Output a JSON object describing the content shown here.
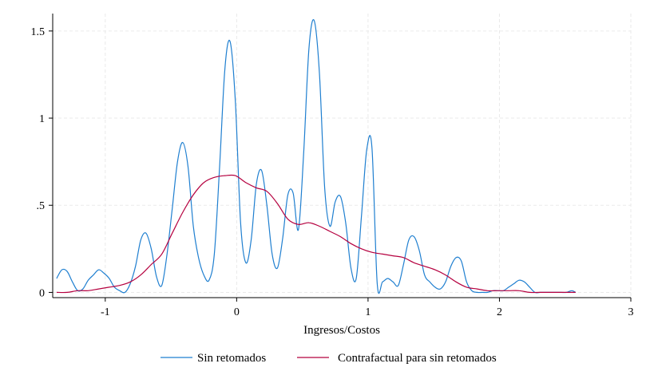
{
  "chart_data": {
    "type": "line",
    "title": "",
    "xlabel": "Ingresos/Costos",
    "ylabel": "",
    "xlim": [
      -1.4,
      3
    ],
    "ylim": [
      -0.03,
      1.6
    ],
    "xticks": [
      -1,
      0,
      1,
      2,
      3
    ],
    "xtick_labels": [
      "-1",
      "0",
      "1",
      "2",
      "3"
    ],
    "yticks": [
      0,
      0.5,
      1,
      1.5
    ],
    "ytick_labels": [
      "0",
      ".5",
      "1",
      "1.5"
    ],
    "grid": true,
    "legend_position": "bottom",
    "series": [
      {
        "name": "Sin retomados",
        "color": "#1f7fd0",
        "x": [
          -1.37,
          -1.33,
          -1.29,
          -1.25,
          -1.21,
          -1.17,
          -1.13,
          -1.09,
          -1.05,
          -1.01,
          -0.97,
          -0.93,
          -0.89,
          -0.85,
          -0.81,
          -0.77,
          -0.73,
          -0.69,
          -0.65,
          -0.61,
          -0.57,
          -0.53,
          -0.49,
          -0.45,
          -0.41,
          -0.37,
          -0.33,
          -0.29,
          -0.25,
          -0.21,
          -0.17,
          -0.13,
          -0.09,
          -0.05,
          -0.01,
          0.03,
          0.07,
          0.11,
          0.15,
          0.19,
          0.23,
          0.27,
          0.31,
          0.35,
          0.39,
          0.43,
          0.47,
          0.51,
          0.55,
          0.59,
          0.63,
          0.67,
          0.71,
          0.75,
          0.79,
          0.83,
          0.87,
          0.91,
          0.95,
          0.99,
          1.03,
          1.07,
          1.11,
          1.15,
          1.19,
          1.23,
          1.27,
          1.31,
          1.35,
          1.39,
          1.43,
          1.47,
          1.51,
          1.55,
          1.59,
          1.63,
          1.67,
          1.71,
          1.75,
          1.79,
          1.83,
          1.87,
          1.91,
          1.95,
          1.99,
          2.03,
          2.07,
          2.11,
          2.15,
          2.19,
          2.23,
          2.27,
          2.31,
          2.35,
          2.39,
          2.43,
          2.47,
          2.51,
          2.55,
          2.58
        ],
        "y": [
          0.08,
          0.13,
          0.12,
          0.06,
          0.01,
          0.02,
          0.07,
          0.1,
          0.13,
          0.11,
          0.08,
          0.03,
          0.01,
          0.0,
          0.05,
          0.15,
          0.3,
          0.34,
          0.25,
          0.09,
          0.04,
          0.22,
          0.48,
          0.75,
          0.86,
          0.72,
          0.38,
          0.2,
          0.1,
          0.07,
          0.22,
          0.72,
          1.28,
          1.44,
          1.1,
          0.4,
          0.17,
          0.3,
          0.62,
          0.7,
          0.5,
          0.22,
          0.14,
          0.31,
          0.56,
          0.57,
          0.36,
          0.8,
          1.4,
          1.56,
          1.26,
          0.6,
          0.38,
          0.52,
          0.55,
          0.4,
          0.14,
          0.08,
          0.44,
          0.82,
          0.83,
          0.05,
          0.06,
          0.08,
          0.06,
          0.04,
          0.16,
          0.3,
          0.32,
          0.24,
          0.1,
          0.06,
          0.03,
          0.02,
          0.06,
          0.15,
          0.2,
          0.18,
          0.06,
          0.01,
          0.0,
          0.0,
          0.0,
          0.01,
          0.01,
          0.01,
          0.03,
          0.05,
          0.07,
          0.06,
          0.03,
          0.0,
          0.0,
          0.0,
          0.0,
          0.0,
          0.0,
          0.0,
          0.01,
          0.0
        ]
      },
      {
        "name": "Contrafactual para sin retomados",
        "color": "#b5003f",
        "x": [
          -1.37,
          -1.29,
          -1.21,
          -1.13,
          -1.05,
          -0.97,
          -0.89,
          -0.81,
          -0.73,
          -0.65,
          -0.57,
          -0.49,
          -0.41,
          -0.33,
          -0.25,
          -0.17,
          -0.09,
          -0.01,
          0.07,
          0.15,
          0.23,
          0.31,
          0.39,
          0.47,
          0.55,
          0.63,
          0.71,
          0.79,
          0.87,
          0.95,
          1.03,
          1.11,
          1.19,
          1.27,
          1.35,
          1.43,
          1.51,
          1.59,
          1.67,
          1.75,
          1.83,
          1.91,
          1.99,
          2.07,
          2.15,
          2.23,
          2.31,
          2.39,
          2.47,
          2.58
        ],
        "y": [
          0.0,
          0.0,
          0.01,
          0.01,
          0.02,
          0.03,
          0.04,
          0.06,
          0.1,
          0.16,
          0.22,
          0.34,
          0.46,
          0.56,
          0.63,
          0.66,
          0.67,
          0.67,
          0.63,
          0.6,
          0.58,
          0.51,
          0.42,
          0.39,
          0.4,
          0.38,
          0.35,
          0.32,
          0.28,
          0.25,
          0.23,
          0.22,
          0.21,
          0.2,
          0.17,
          0.15,
          0.13,
          0.1,
          0.06,
          0.03,
          0.02,
          0.01,
          0.01,
          0.01,
          0.01,
          0.0,
          0.0,
          0.0,
          0.0,
          0.0
        ]
      }
    ]
  }
}
